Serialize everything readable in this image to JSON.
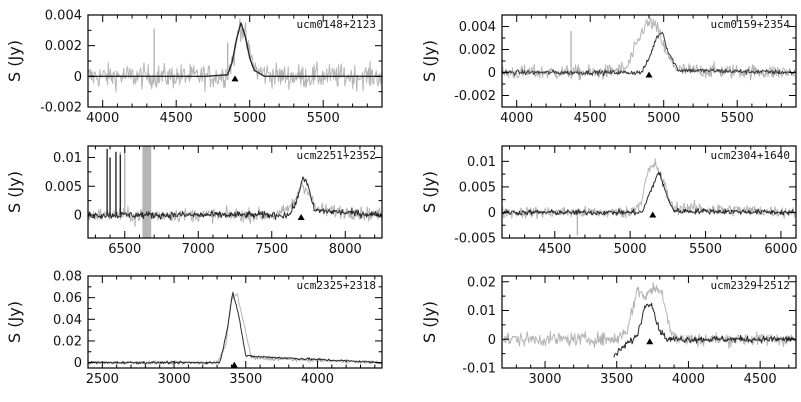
{
  "figure": {
    "ylabel": "S (Jy)"
  },
  "chart_data": [
    {
      "type": "line",
      "title": "ucm0148+2123",
      "ylabel": "S (Jy)",
      "grid": false,
      "xlim": [
        3900,
        5900
      ],
      "ylim": [
        -0.002,
        0.004
      ],
      "xticks": [
        4000,
        4500,
        5000,
        5500
      ],
      "xtick_labels": [
        "4000",
        "4500",
        "5000",
        "5500"
      ],
      "yticks": [
        -0.002,
        0,
        0.002,
        0.004
      ],
      "ytick_labels": [
        "-0.002",
        "0",
        "0.002",
        "0.004"
      ],
      "series": [
        {
          "style": "noisy",
          "color": "#b5b5b5",
          "x": [
            3900,
            4100,
            4300,
            4500,
            4700,
            4800,
            4850,
            4900,
            4930,
            4960,
            5000,
            5050,
            5200,
            5500,
            5900
          ],
          "y": [
            0,
            0,
            0,
            0,
            0,
            0,
            0.0002,
            0.0015,
            0.0034,
            0.003,
            0.0014,
            0.0003,
            0,
            0,
            0
          ],
          "noise": 0.00075,
          "spikes": [
            {
              "x": 4350,
              "y": 0.0031
            },
            {
              "x": 4850,
              "y": 0.0022
            }
          ]
        },
        {
          "style": "smooth",
          "color": "#2a2a2a",
          "x": [
            3900,
            4700,
            4850,
            4880,
            4910,
            4940,
            4970,
            5000,
            5030,
            5100,
            5900
          ],
          "y": [
            0,
            0,
            0.0001,
            0.0009,
            0.0024,
            0.0035,
            0.0026,
            0.0012,
            0.0004,
            0,
            0
          ]
        }
      ],
      "marker_x": 4900
    },
    {
      "type": "line",
      "title": "ucm0159+2354",
      "ylabel": "S (Jy)",
      "grid": false,
      "xlim": [
        3900,
        5900
      ],
      "ylim": [
        -0.003,
        0.005
      ],
      "xticks": [
        4000,
        4500,
        5000,
        5500
      ],
      "xtick_labels": [
        "4000",
        "4500",
        "5000",
        "5500"
      ],
      "yticks": [
        -0.002,
        0,
        0.002,
        0.004
      ],
      "ytick_labels": [
        "-0.002",
        "0",
        "0.002",
        "0.004"
      ],
      "series": [
        {
          "style": "noisy",
          "color": "#b5b5b5",
          "x": [
            3900,
            4600,
            4750,
            4820,
            4870,
            4920,
            4970,
            5020,
            5100,
            5900
          ],
          "y": [
            0,
            0,
            0.0004,
            0.0025,
            0.0041,
            0.0043,
            0.0035,
            0.0015,
            0.0002,
            0
          ],
          "noise": 0.0006,
          "spikes": [
            {
              "x": 4370,
              "y": 0.0036
            }
          ]
        },
        {
          "style": "noisy",
          "color": "#3a3a3a",
          "x": [
            3900,
            4850,
            4900,
            4950,
            4990,
            5030,
            5100,
            5900
          ],
          "y": [
            0,
            0,
            0.0012,
            0.003,
            0.0036,
            0.0018,
            0.0002,
            0
          ],
          "noise": 0.0002,
          "spikes": []
        }
      ],
      "marker_x": 4900
    },
    {
      "type": "line",
      "title": "ucm2251+2352",
      "ylabel": "S (Jy)",
      "grid": false,
      "xlim": [
        6250,
        8250
      ],
      "ylim": [
        -0.004,
        0.012
      ],
      "xticks": [
        6500,
        7000,
        7500,
        8000
      ],
      "xtick_labels": [
        "6500",
        "7000",
        "7500",
        "8000"
      ],
      "yticks": [
        0,
        0.005,
        0.01
      ],
      "ytick_labels": [
        "0",
        "0.005",
        "0.01"
      ],
      "series": [
        {
          "style": "noisy",
          "color": "#b5b5b5",
          "x": [
            6250,
            7550,
            7650,
            7700,
            7740,
            7800,
            8250
          ],
          "y": [
            0,
            0,
            0.002,
            0.0055,
            0.0045,
            0.001,
            0
          ],
          "noise": 0.0011,
          "band": {
            "x0": 6620,
            "x1": 6680,
            "ymin": -0.004,
            "ymax": 0.012
          },
          "spikes": [
            {
              "x": 6470,
              "y": 0.011
            },
            {
              "x": 6500,
              "y": 0.0115
            },
            {
              "x": 6570,
              "y": -0.002
            }
          ]
        },
        {
          "style": "noisy",
          "color": "#2a2a2a",
          "x": [
            6250,
            7620,
            7680,
            7710,
            7740,
            7790,
            8250
          ],
          "y": [
            0,
            0,
            0.003,
            0.0068,
            0.0055,
            0.0008,
            0
          ],
          "noise": 0.0006,
          "spikes": [
            {
              "x": 6380,
              "y": 0.0115
            },
            {
              "x": 6400,
              "y": 0.01
            },
            {
              "x": 6440,
              "y": 0.011
            },
            {
              "x": 6470,
              "y": 0.0105
            }
          ]
        }
      ],
      "marker_x": 7700
    },
    {
      "type": "line",
      "title": "ucm2304+1640",
      "ylabel": "S (Jy)",
      "grid": false,
      "xlim": [
        4150,
        6100
      ],
      "ylim": [
        -0.005,
        0.013
      ],
      "xticks": [
        4500,
        5000,
        5500,
        6000
      ],
      "xtick_labels": [
        "4500",
        "5000",
        "5500",
        "6000"
      ],
      "yticks": [
        -0.005,
        0,
        0.005,
        0.01
      ],
      "ytick_labels": [
        "-0.005",
        "0",
        "0.005",
        "0.01"
      ],
      "series": [
        {
          "style": "noisy",
          "color": "#b5b5b5",
          "x": [
            4150,
            5000,
            5070,
            5120,
            5170,
            5220,
            5280,
            6100
          ],
          "y": [
            0,
            0,
            0.002,
            0.008,
            0.0095,
            0.006,
            0.001,
            0
          ],
          "noise": 0.0011,
          "spikes": [
            {
              "x": 4650,
              "y": -0.0045
            }
          ]
        },
        {
          "style": "noisy",
          "color": "#2a2a2a",
          "x": [
            4150,
            5080,
            5140,
            5190,
            5240,
            5290,
            6100
          ],
          "y": [
            0,
            0,
            0.0045,
            0.008,
            0.0035,
            0.0003,
            0
          ],
          "noise": 0.0005,
          "spikes": []
        }
      ],
      "marker_x": 5150
    },
    {
      "type": "line",
      "title": "ucm2325+2318",
      "ylabel": "S (Jy)",
      "grid": false,
      "xlim": [
        2400,
        4450
      ],
      "ylim": [
        -0.005,
        0.08
      ],
      "xticks": [
        2500,
        3000,
        3500,
        4000
      ],
      "xtick_labels": [
        "2500",
        "3000",
        "3500",
        "4000"
      ],
      "yticks": [
        0,
        0.02,
        0.04,
        0.06,
        0.08
      ],
      "ytick_labels": [
        "0",
        "0.02",
        "0.04",
        "0.06",
        "0.08"
      ],
      "series": [
        {
          "style": "noisy",
          "color": "#b5b5b5",
          "x": [
            2400,
            3300,
            3360,
            3400,
            3440,
            3480,
            3540,
            4450
          ],
          "y": [
            0,
            0,
            0.015,
            0.06,
            0.063,
            0.04,
            0.004,
            0
          ],
          "noise": 0.0015,
          "spikes": []
        },
        {
          "style": "noisy",
          "color": "#2a2a2a",
          "x": [
            2400,
            3320,
            3370,
            3410,
            3450,
            3500,
            4450
          ],
          "y": [
            0,
            0,
            0.03,
            0.065,
            0.045,
            0.006,
            0
          ],
          "noise": 0.001,
          "spikes": []
        }
      ],
      "marker_x": 3420
    },
    {
      "type": "line",
      "title": "ucm2329+2512",
      "ylabel": "S (Jy)",
      "grid": false,
      "xlim": [
        2700,
        4750
      ],
      "ylim": [
        -0.01,
        0.022
      ],
      "xticks": [
        3000,
        3500,
        4000,
        4500
      ],
      "xtick_labels": [
        "3000",
        "3500",
        "4000",
        "4500"
      ],
      "yticks": [
        -0.01,
        0,
        0.01,
        0.02
      ],
      "ytick_labels": [
        "-0.01",
        "0",
        "0.01",
        "0.02"
      ],
      "series": [
        {
          "style": "noisy",
          "color": "#b5b5b5",
          "x": [
            2700,
            3500,
            3580,
            3640,
            3700,
            3760,
            3820,
            3870,
            3920,
            4750
          ],
          "y": [
            0,
            0,
            0.004,
            0.017,
            0.015,
            0.018,
            0.016,
            0.004,
            0,
            0
          ],
          "noise": 0.0022,
          "spikes": []
        },
        {
          "style": "noisy",
          "color": "#2a2a2a",
          "x": [
            3480,
            3560,
            3640,
            3700,
            3740,
            3790,
            3850,
            4750
          ],
          "y": [
            -0.006,
            -0.002,
            0.001,
            0.012,
            0.013,
            0.004,
            0,
            0
          ],
          "noise": 0.0011,
          "spikes": []
        }
      ],
      "marker_x": 3730
    }
  ]
}
